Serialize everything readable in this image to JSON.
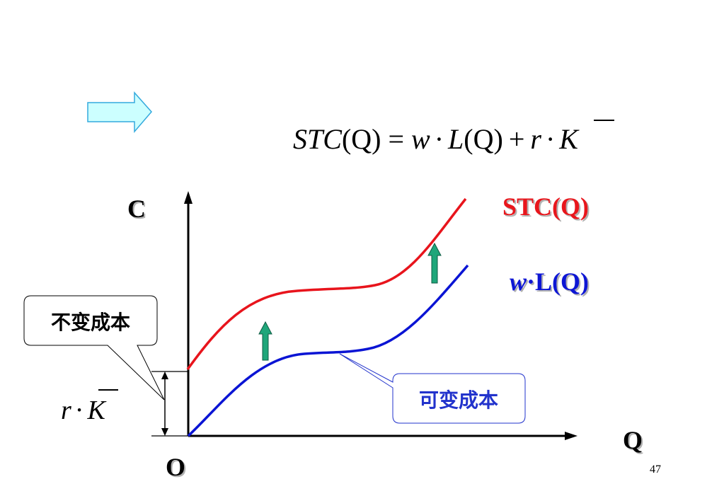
{
  "formula": {
    "stc": "STC",
    "q1": "(Q)",
    "eq": "=",
    "w": "w",
    "dot1": "·",
    "L": "L",
    "q2": "(Q)",
    "plus": "+",
    "r": "r",
    "dot2": "·",
    "K": "K"
  },
  "axis": {
    "y_label": "C",
    "x_label": "Q",
    "origin": "O"
  },
  "curves": {
    "stc_label": "STC(Q)",
    "wl_w": "w",
    "wl_rest": "·L(Q)"
  },
  "callouts": {
    "fixed_cost": "不变成本",
    "variable_cost": "可变成本"
  },
  "fixed_cost_label": {
    "r": "r",
    "dot": "·",
    "K": "K"
  },
  "page_number": "47",
  "colors": {
    "stc": "#e8141c",
    "wl": "#0a14d4",
    "arrow_fill": "#1fa67a",
    "block_arrow_fill": "#ccffff",
    "block_arrow_stroke": "#33aadd",
    "callout_blue": "#2233cc"
  }
}
